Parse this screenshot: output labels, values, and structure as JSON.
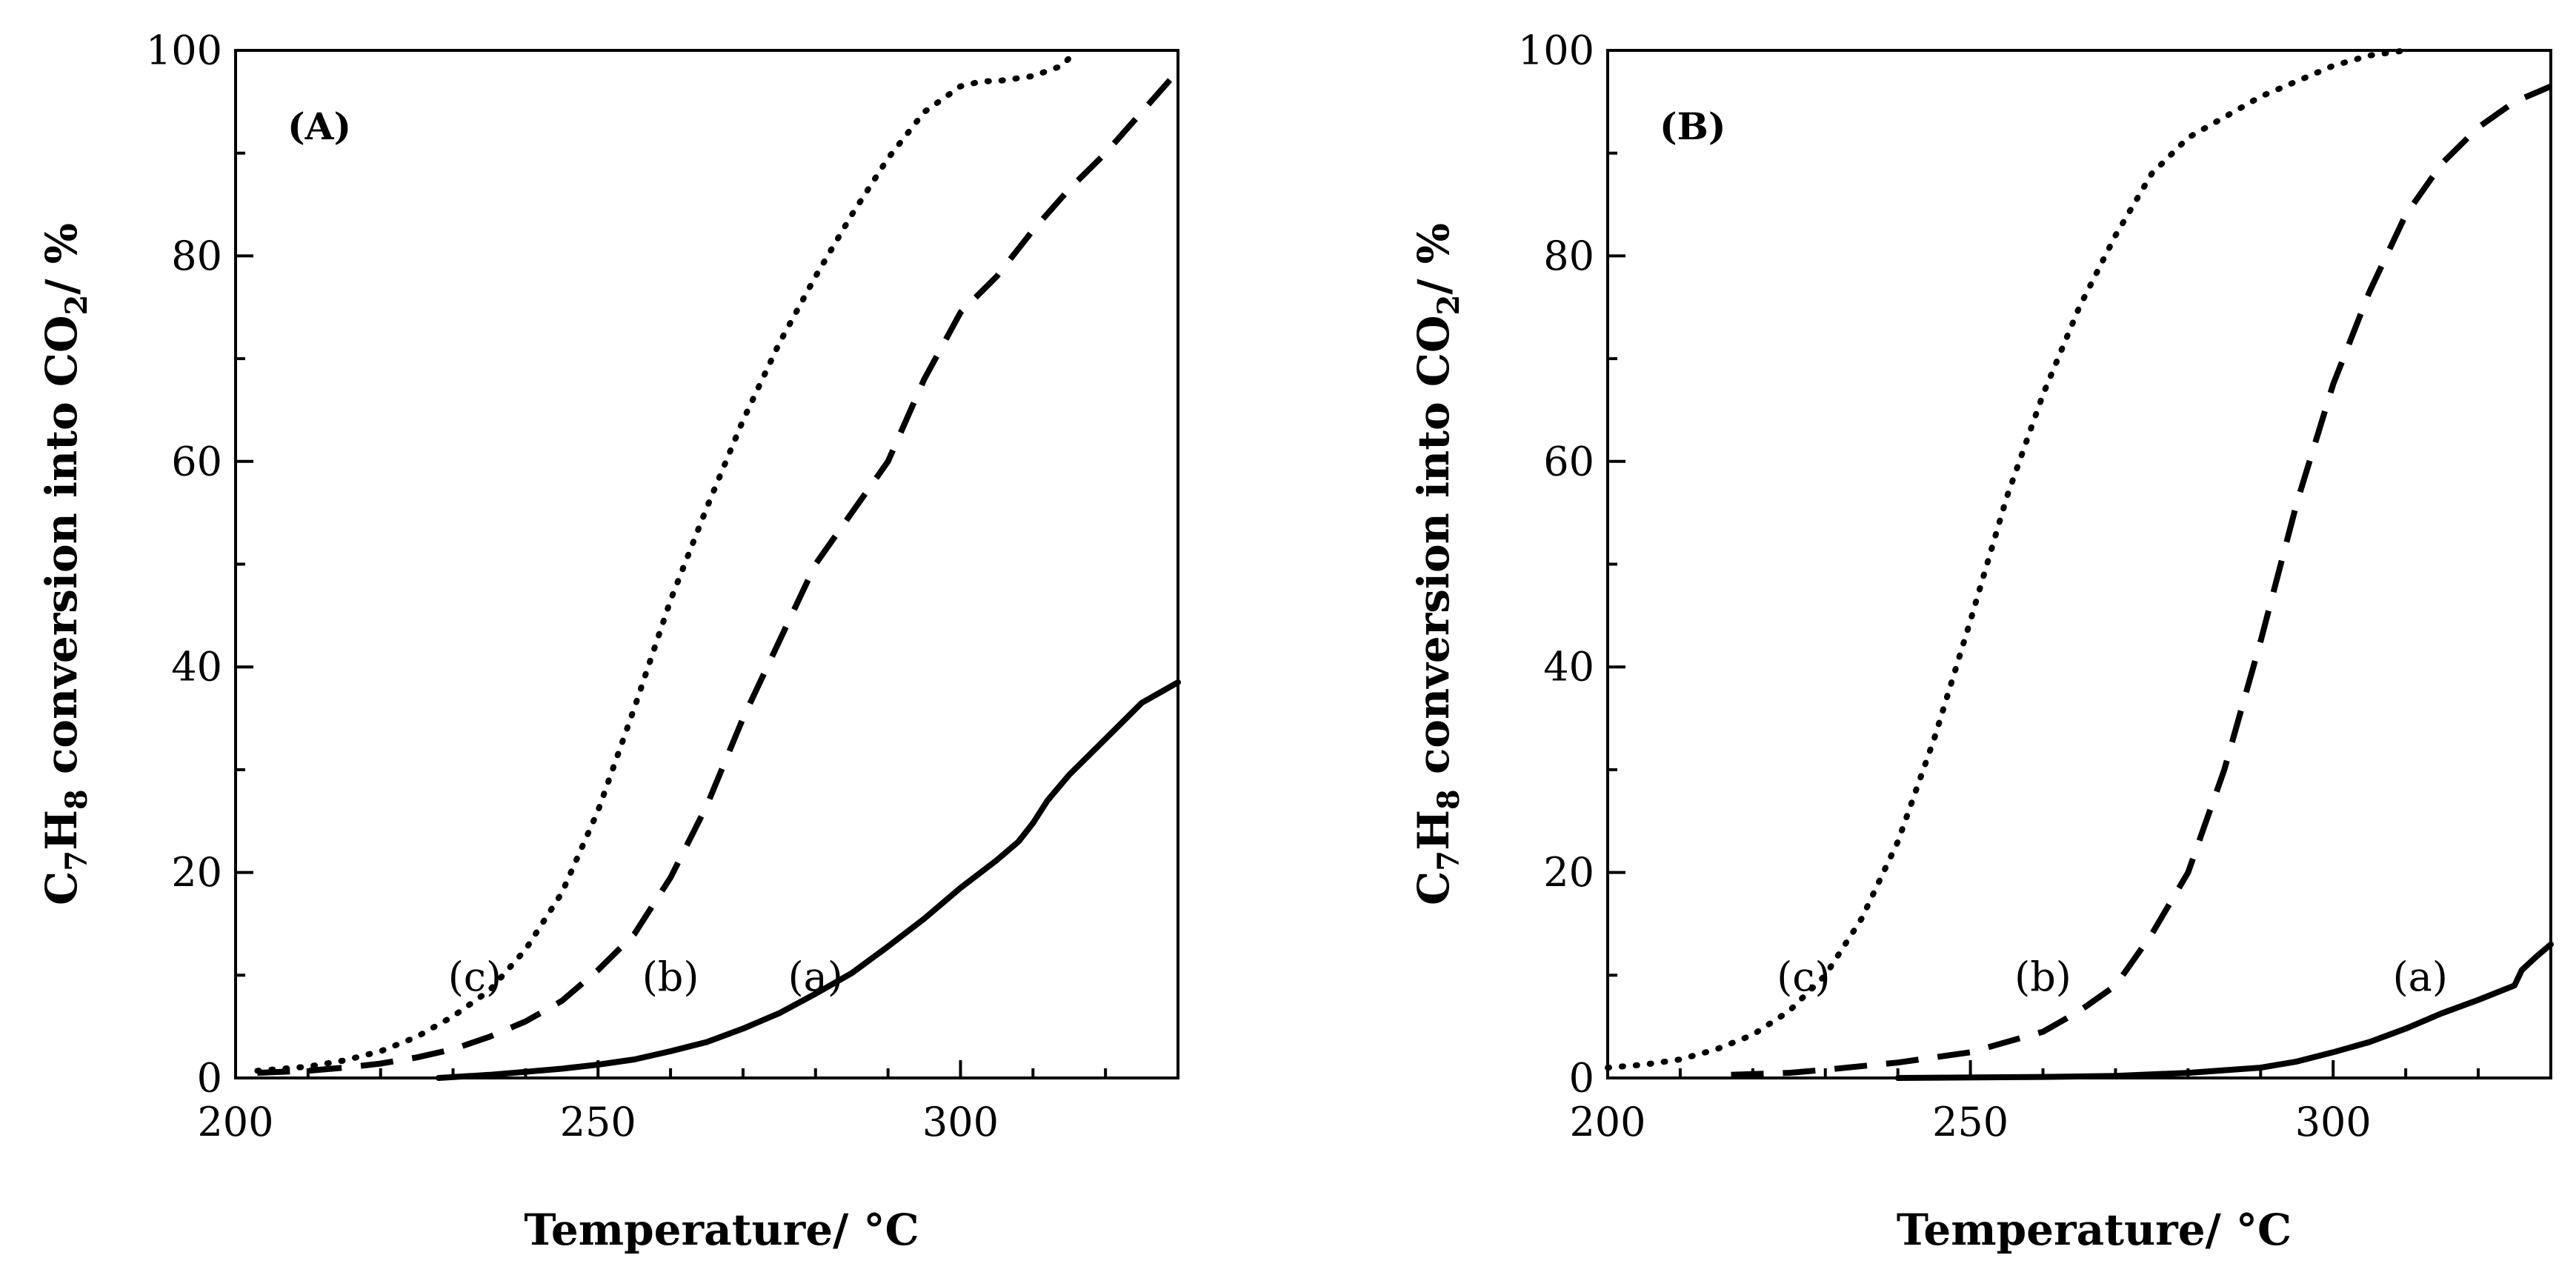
{
  "chart_data": [
    {
      "type": "line",
      "panel_label": "(A)",
      "xlabel": "Temperature/ °C",
      "ylabel_parts": [
        "C",
        "7",
        "H",
        "8",
        " conversion into CO",
        "2",
        "/ %"
      ],
      "xlim": [
        200,
        330
      ],
      "ylim": [
        0,
        100
      ],
      "xticks": [
        200,
        250,
        300
      ],
      "yticks": [
        0,
        20,
        40,
        60,
        80,
        100
      ],
      "series": [
        {
          "name": "(a)",
          "style": "solid",
          "label_at": [
            280,
            8.5
          ],
          "x": [
            228,
            235,
            240,
            245,
            250,
            255,
            260,
            265,
            270,
            275,
            280,
            285,
            290,
            295,
            300,
            305,
            308,
            310,
            312,
            315,
            320,
            325,
            330
          ],
          "y": [
            0,
            0.3,
            0.6,
            0.9,
            1.3,
            1.8,
            2.6,
            3.5,
            4.8,
            6.3,
            8.2,
            10.2,
            12.8,
            15.5,
            18.5,
            21.2,
            23.0,
            24.8,
            27.0,
            29.5,
            33.0,
            36.5,
            38.5
          ]
        },
        {
          "name": "(b)",
          "style": "dashed",
          "label_at": [
            260,
            8.5
          ],
          "x": [
            203,
            210,
            215,
            220,
            225,
            230,
            235,
            240,
            245,
            250,
            255,
            260,
            265,
            270,
            275,
            280,
            285,
            290,
            295,
            300,
            305,
            310,
            315,
            320,
            325,
            330
          ],
          "y": [
            0.5,
            0.7,
            1.0,
            1.4,
            2.0,
            2.8,
            4.0,
            5.5,
            7.5,
            10.5,
            14.0,
            19.5,
            26.5,
            35.0,
            42.5,
            50.0,
            55.0,
            60.0,
            68.0,
            74.5,
            78.0,
            82.5,
            86.5,
            90.0,
            94.0,
            98.0
          ]
        },
        {
          "name": "(c)",
          "style": "dotted",
          "label_at": [
            233,
            8.5
          ],
          "x": [
            203,
            210,
            215,
            220,
            225,
            230,
            235,
            240,
            245,
            250,
            255,
            260,
            265,
            270,
            275,
            280,
            285,
            290,
            295,
            300,
            303,
            305,
            310,
            314,
            316
          ],
          "y": [
            0.7,
            1.1,
            1.7,
            2.6,
            4.0,
            6.0,
            8.5,
            12.5,
            18.0,
            26.0,
            36.0,
            46.5,
            55.5,
            64.0,
            71.5,
            78.0,
            84.0,
            89.5,
            94.0,
            96.5,
            97.0,
            97.0,
            97.5,
            98.5,
            100.0
          ]
        }
      ]
    },
    {
      "type": "line",
      "panel_label": "(B)",
      "xlabel": "Temperature/ °C",
      "ylabel_parts": [
        "C",
        "7",
        "H",
        "8",
        " conversion into CO",
        "2",
        "/ %"
      ],
      "xlim": [
        200,
        330
      ],
      "ylim": [
        0,
        100
      ],
      "xticks": [
        200,
        250,
        300
      ],
      "yticks": [
        0,
        20,
        40,
        60,
        80,
        100
      ],
      "series": [
        {
          "name": "(a)",
          "style": "solid",
          "label_at": [
            312,
            8.5
          ],
          "x": [
            240,
            260,
            270,
            280,
            290,
            295,
            300,
            305,
            310,
            315,
            320,
            325,
            326,
            328,
            330
          ],
          "y": [
            0,
            0.1,
            0.2,
            0.5,
            1.0,
            1.6,
            2.5,
            3.5,
            4.8,
            6.3,
            7.6,
            9.0,
            10.5,
            11.8,
            13.0
          ]
        },
        {
          "name": "(b)",
          "style": "dashed",
          "label_at": [
            260,
            8.5
          ],
          "x": [
            217,
            225,
            230,
            240,
            250,
            260,
            265,
            270,
            275,
            280,
            285,
            290,
            295,
            300,
            305,
            310,
            315,
            320,
            325,
            330
          ],
          "y": [
            0.3,
            0.5,
            0.8,
            1.5,
            2.5,
            4.5,
            6.5,
            9.0,
            14.0,
            20.0,
            30.0,
            42.5,
            56.0,
            67.5,
            76.5,
            84.0,
            89.0,
            92.5,
            95.0,
            96.5
          ]
        },
        {
          "name": "(c)",
          "style": "dotted",
          "label_at": [
            227,
            8.5
          ],
          "x": [
            200,
            205,
            210,
            215,
            220,
            225,
            230,
            235,
            240,
            245,
            250,
            255,
            260,
            265,
            270,
            275,
            280,
            285,
            290,
            295,
            300,
            305,
            310
          ],
          "y": [
            1.0,
            1.3,
            1.8,
            2.8,
            4.2,
            6.5,
            10.0,
            15.5,
            23.0,
            33.0,
            44.5,
            56.5,
            66.5,
            75.0,
            82.0,
            88.0,
            91.5,
            93.5,
            95.5,
            97.0,
            98.5,
            99.5,
            100.0
          ]
        }
      ]
    }
  ]
}
